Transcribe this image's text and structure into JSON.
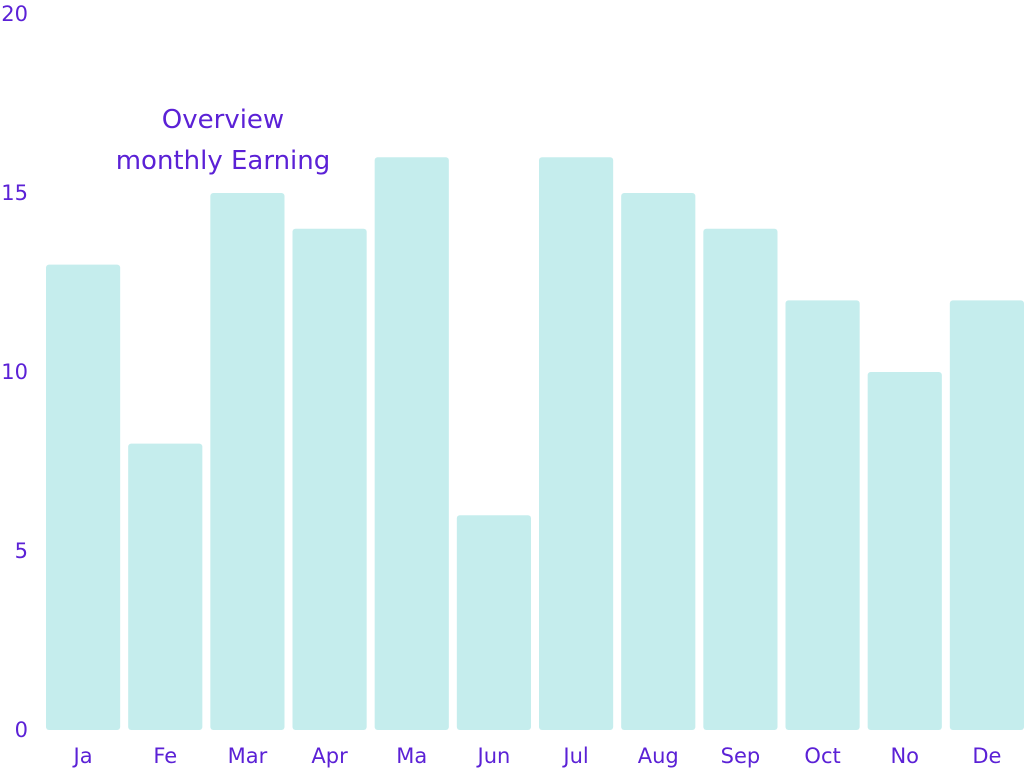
{
  "colors": {
    "bar": "#c5eded",
    "text": "#5b21d6",
    "background": "#ffffff"
  },
  "chart_data": {
    "type": "bar",
    "title_lines": [
      "Overview",
      "monthly Earning"
    ],
    "categories": [
      "Ja",
      "Fe",
      "Mar",
      "Apr",
      "Ma",
      "Jun",
      "Jul",
      "Aug",
      "Sep",
      "Oct",
      "No",
      "De"
    ],
    "values": [
      13,
      8,
      15,
      14,
      16,
      6,
      16,
      15,
      14,
      12,
      10,
      12
    ],
    "yticks": [
      0,
      5,
      10,
      15,
      20
    ],
    "ylim": [
      0,
      20
    ],
    "xlabel": "",
    "ylabel": "",
    "grid": false,
    "legend": "none"
  }
}
